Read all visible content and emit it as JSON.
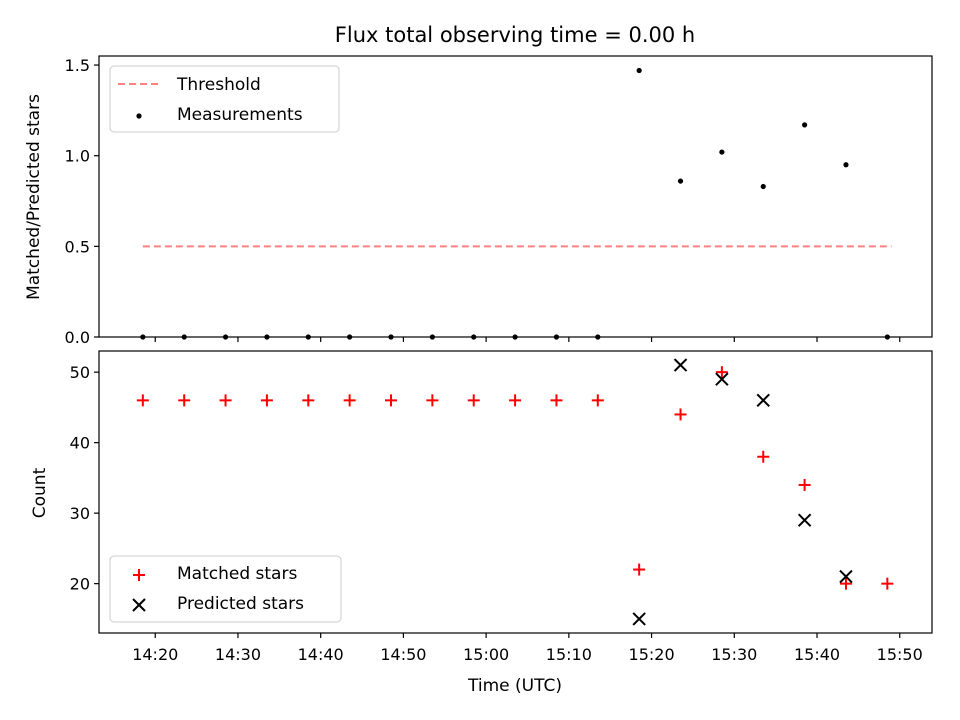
{
  "chart_data": {
    "type": "scatter",
    "title": "Flux total observing time = 0.00 h",
    "x_tick_labels": [
      "14:20",
      "14:30",
      "14:40",
      "14:50",
      "15:00",
      "15:10",
      "15:20",
      "15:30",
      "15:40",
      "15:50"
    ],
    "x_tick_minutes": [
      860,
      870,
      880,
      890,
      900,
      910,
      920,
      930,
      940,
      950
    ],
    "xlabel": "Time (UTC)",
    "xlim_minutes": [
      853.2,
      953.9
    ],
    "top_panel": {
      "ylabel": "Matched/Predicted stars",
      "ylim": [
        0.0,
        1.55
      ],
      "y_ticks": [
        0.0,
        0.5,
        1.0,
        1.5
      ],
      "y_tick_labels": [
        "0.0",
        "0.5",
        "1.0",
        "1.5"
      ],
      "legend": [
        "Threshold",
        "Measurements"
      ],
      "threshold": {
        "name": "Threshold",
        "value": 0.5,
        "x_start": 858.5,
        "x_end": 949.0,
        "color": "#ff8080"
      },
      "measurements": {
        "name": "Measurements",
        "color": "#000000",
        "x": [
          858.5,
          863.5,
          868.5,
          873.5,
          878.5,
          883.5,
          888.5,
          893.5,
          898.5,
          903.5,
          908.5,
          913.5,
          918.5,
          923.5,
          928.5,
          933.5,
          938.5,
          943.5,
          948.5
        ],
        "y": [
          0.0,
          0.0,
          0.0,
          0.0,
          0.0,
          0.0,
          0.0,
          0.0,
          0.0,
          0.0,
          0.0,
          0.0,
          1.47,
          0.86,
          1.02,
          0.83,
          1.17,
          0.95,
          0.0
        ]
      }
    },
    "bottom_panel": {
      "ylabel": "Count",
      "ylim": [
        13.0,
        53.0
      ],
      "y_ticks": [
        20,
        30,
        40,
        50
      ],
      "y_tick_labels": [
        "20",
        "30",
        "40",
        "50"
      ],
      "legend": [
        "Matched stars",
        "Predicted stars"
      ],
      "series": [
        {
          "name": "Matched stars",
          "marker": "+",
          "color": "#ff0000",
          "x": [
            858.5,
            863.5,
            868.5,
            873.5,
            878.5,
            883.5,
            888.5,
            893.5,
            898.5,
            903.5,
            908.5,
            913.5,
            918.5,
            923.5,
            928.5,
            933.5,
            938.5,
            943.5,
            948.5
          ],
          "y": [
            46,
            46,
            46,
            46,
            46,
            46,
            46,
            46,
            46,
            46,
            46,
            46,
            22,
            44,
            50,
            38,
            34,
            20,
            20
          ]
        },
        {
          "name": "Predicted stars",
          "marker": "x",
          "color": "#000000",
          "x": [
            918.5,
            923.5,
            928.5,
            933.5,
            938.5,
            943.5
          ],
          "y": [
            15,
            51,
            49,
            46,
            29,
            21
          ]
        }
      ]
    }
  }
}
